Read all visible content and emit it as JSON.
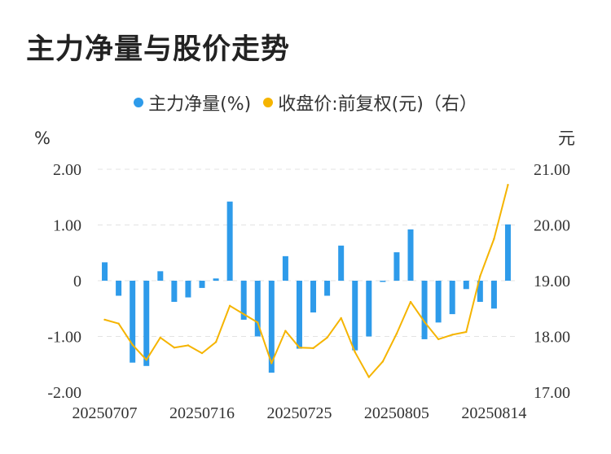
{
  "title": "主力净量与股价走势",
  "chart_data": {
    "type": "bar",
    "legend": [
      {
        "label": "主力净量(%)",
        "color": "#2e9bea"
      },
      {
        "label": "收盘价:前复权(元)（右）",
        "color": "#f5b400"
      }
    ],
    "y_left_unit": "%",
    "y_right_unit": "元",
    "y_left_ticks": [
      "2.00",
      "1.00",
      "0",
      "-1.00",
      "-2.00"
    ],
    "y_right_ticks": [
      "21.00",
      "20.00",
      "19.00",
      "18.00",
      "17.00"
    ],
    "y_left_range": [
      -2,
      2
    ],
    "y_right_range": [
      17,
      21
    ],
    "x_tick_labels": [
      "20250707",
      "20250716",
      "20250725",
      "20250805",
      "20250814"
    ],
    "x_tick_indices": [
      0,
      7,
      14,
      21,
      28
    ],
    "grid": "horizontal dashed",
    "legend_position": "top",
    "series": [
      {
        "name": "主力净量(%)",
        "type": "bar",
        "values": [
          0.33,
          -0.27,
          -1.47,
          -1.53,
          0.17,
          -0.38,
          -0.3,
          -0.13,
          0.04,
          1.42,
          -0.7,
          -1.0,
          -1.65,
          0.44,
          -1.22,
          -0.57,
          -0.27,
          0.63,
          -1.25,
          -1.0,
          -0.02,
          0.51,
          0.92,
          -1.05,
          -0.75,
          -0.6,
          -0.15,
          -0.38,
          -0.5,
          1.01
        ]
      },
      {
        "name": "收盘价:前复权(元)（右）",
        "type": "line",
        "values": [
          18.3,
          18.23,
          17.85,
          17.58,
          17.98,
          17.8,
          17.84,
          17.7,
          17.9,
          18.55,
          18.4,
          18.25,
          17.52,
          18.1,
          17.8,
          17.79,
          17.98,
          18.33,
          17.72,
          17.27,
          17.55,
          18.05,
          18.62,
          18.26,
          17.95,
          18.03,
          18.08,
          19.08,
          19.75,
          20.72
        ]
      }
    ]
  }
}
